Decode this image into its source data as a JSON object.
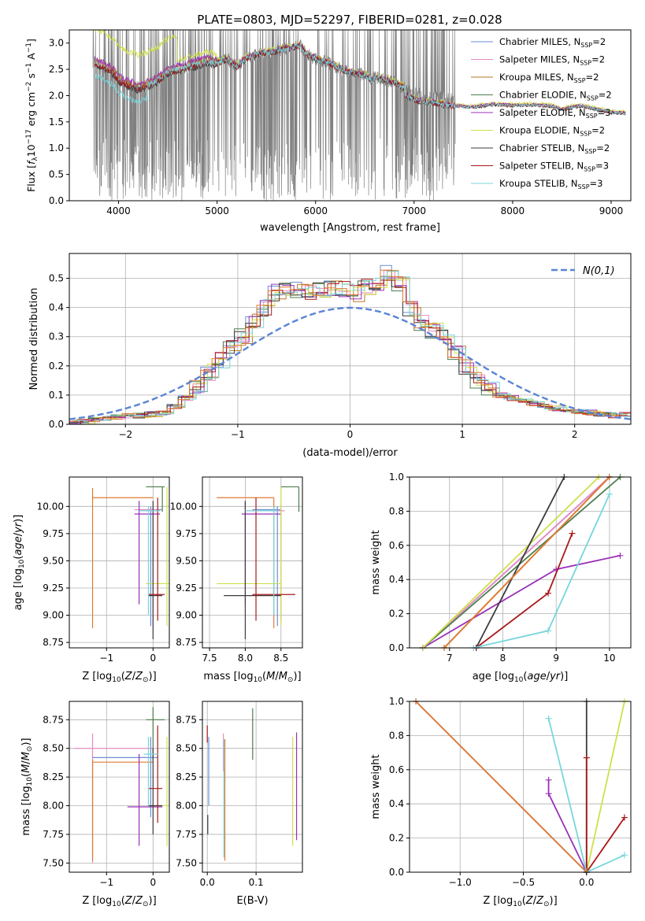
{
  "figure": {
    "title": "PLATE=0803, MJD=52297, FIBERID=0281, z=0.028"
  },
  "colors": {
    "Chabrier MILES": "#6a8fd8",
    "Salpeter MILES": "#e68ac4",
    "Kroupa MILES": "#b57a20",
    "Chabrier ELODIE": "#4d7d4d",
    "Salpeter ELODIE": "#9a30b8",
    "Kroupa ELODIE": "#cfe04a",
    "Chabrier STELIB": "#3c3c3c",
    "Salpeter STELIB": "#a81818",
    "Kroupa STELIB": "#78d6dc",
    "data": "#808080",
    "orange": "#e07a32",
    "normal": "#5b84d6"
  },
  "chart_data": [
    {
      "type": "line",
      "id": "spectrum",
      "xlabel": "wavelength [Angstrom, rest frame]",
      "ylabel": "Flux [f_λ 10^-17 erg cm^-2 s^-1 A^-1]",
      "xlim": [
        3500,
        9200
      ],
      "ylim": [
        0,
        3.25
      ],
      "xticks": [
        "4000",
        "5000",
        "6000",
        "7000",
        "8000",
        "9000"
      ],
      "yticks": [
        "0.0",
        "0.5",
        "1.0",
        "1.5",
        "2.0",
        "2.5",
        "3.0"
      ],
      "data_range": [
        3740,
        7420
      ],
      "legend_position": "upper-right",
      "legend": [
        {
          "model": "Chabrier MILES",
          "label": "Chabrier MILES, N",
          "sub": "SSP",
          "tail": "=2"
        },
        {
          "model": "Salpeter MILES",
          "label": "Salpeter MILES, N",
          "sub": "SSP",
          "tail": "=2"
        },
        {
          "model": "Kroupa MILES",
          "label": "Kroupa MILES, N",
          "sub": "SSP",
          "tail": "=2"
        },
        {
          "model": "Chabrier ELODIE",
          "label": "Chabrier ELODIE, N",
          "sub": "SSP",
          "tail": "=2"
        },
        {
          "model": "Salpeter ELODIE",
          "label": "Salpeter ELODIE, N",
          "sub": "SSP",
          "tail": "=3"
        },
        {
          "model": "Kroupa ELODIE",
          "label": "Kroupa ELODIE, N",
          "sub": "SSP",
          "tail": "=2"
        },
        {
          "model": "Chabrier STELIB",
          "label": "Chabrier STELIB, N",
          "sub": "SSP",
          "tail": "=2"
        },
        {
          "model": "Salpeter STELIB",
          "label": "Salpeter STELIB, N",
          "sub": "SSP",
          "tail": "=3"
        },
        {
          "model": "Kroupa STELIB",
          "label": "Kroupa STELIB, N",
          "sub": "SSP",
          "tail": "=3"
        }
      ],
      "continuum": [
        [
          3740,
          2.65
        ],
        [
          3800,
          2.6
        ],
        [
          3900,
          2.5
        ],
        [
          3950,
          2.45
        ],
        [
          4000,
          2.3
        ],
        [
          4100,
          2.2
        ],
        [
          4200,
          2.15
        ],
        [
          4300,
          2.2
        ],
        [
          4400,
          2.3
        ],
        [
          4500,
          2.45
        ],
        [
          4600,
          2.5
        ],
        [
          4700,
          2.55
        ],
        [
          4800,
          2.6
        ],
        [
          4900,
          2.65
        ],
        [
          5000,
          2.62
        ],
        [
          5100,
          2.7
        ],
        [
          5200,
          2.55
        ],
        [
          5300,
          2.72
        ],
        [
          5400,
          2.78
        ],
        [
          5500,
          2.82
        ],
        [
          5600,
          2.85
        ],
        [
          5700,
          2.9
        ],
        [
          5800,
          2.93
        ],
        [
          5850,
          2.96
        ],
        [
          5900,
          2.8
        ],
        [
          6000,
          2.7
        ],
        [
          6100,
          2.65
        ],
        [
          6200,
          2.55
        ],
        [
          6300,
          2.48
        ],
        [
          6400,
          2.42
        ],
        [
          6500,
          2.4
        ],
        [
          6560,
          2.3
        ],
        [
          6600,
          2.35
        ],
        [
          6700,
          2.3
        ],
        [
          6800,
          2.25
        ],
        [
          6900,
          2.15
        ],
        [
          7000,
          2.05
        ],
        [
          7100,
          2.0
        ],
        [
          7200,
          1.98
        ],
        [
          7300,
          1.95
        ],
        [
          7420,
          1.92
        ],
        [
          7600,
          1.9
        ],
        [
          7800,
          1.95
        ],
        [
          8000,
          1.93
        ],
        [
          8200,
          1.94
        ],
        [
          8400,
          1.92
        ],
        [
          8500,
          1.85
        ],
        [
          8600,
          1.9
        ],
        [
          8700,
          1.92
        ],
        [
          8800,
          1.88
        ],
        [
          9000,
          1.8
        ],
        [
          9200,
          1.78
        ]
      ]
    },
    {
      "type": "step",
      "id": "residual-histogram",
      "xlabel": "(data-model)/error",
      "ylabel": "Normed distribution",
      "xlim": [
        -2.5,
        2.5
      ],
      "ylim": [
        0,
        0.585
      ],
      "xticks": [
        "−2",
        "−1",
        "0",
        "1",
        "2"
      ],
      "yticks": [
        "0.0",
        "0.1",
        "0.2",
        "0.3",
        "0.4",
        "0.5"
      ],
      "bin_edges_start": -2.5,
      "bin_width": 0.1,
      "base_values": [
        0.005,
        0.01,
        0.015,
        0.02,
        0.025,
        0.028,
        0.03,
        0.035,
        0.04,
        0.06,
        0.09,
        0.13,
        0.18,
        0.22,
        0.26,
        0.3,
        0.35,
        0.4,
        0.45,
        0.47,
        0.46,
        0.45,
        0.46,
        0.47,
        0.46,
        0.45,
        0.47,
        0.48,
        0.52,
        0.48,
        0.4,
        0.35,
        0.32,
        0.3,
        0.24,
        0.2,
        0.15,
        0.12,
        0.1,
        0.09,
        0.08,
        0.07,
        0.06,
        0.055,
        0.05,
        0.045,
        0.04,
        0.035,
        0.03,
        0.035
      ],
      "normal_label": "N(0,1)",
      "legend_position": "upper-right"
    }
  ],
  "panels": {
    "age_vs_Z": {
      "xlabel_pre": "Z [log",
      "xlabel_sub": "10",
      "xlabel_post": "(Z/Z",
      "xlabel_end": ")]",
      "ylabel": "age  [log10(age/yr)]",
      "xticks": [
        "−1",
        "0"
      ],
      "yticks": [
        "8.75",
        "9.00",
        "9.25",
        "9.50",
        "9.75",
        "10.00"
      ],
      "xlim": [
        -1.8,
        0.35
      ],
      "ylim": [
        8.7,
        10.27
      ]
    },
    "age_vs_mass": {
      "xlabel": "mass [log10(M/M⊙)]",
      "xticks": [
        "7.5",
        "8.0",
        "8.5"
      ],
      "yticks": [
        "8.75",
        "9.00",
        "9.25",
        "9.50",
        "9.75",
        "10.00"
      ],
      "xlim": [
        7.4,
        8.8
      ],
      "ylim": [
        8.7,
        10.27
      ]
    },
    "mass_weight_vs_age": {
      "xlabel": "age  [log10(age/yr)]",
      "ylabel": "mass weight",
      "xticks": [
        "7",
        "8",
        "9",
        "10"
      ],
      "yticks": [
        "0.0",
        "0.2",
        "0.4",
        "0.6",
        "0.8",
        "1.0"
      ],
      "xlim": [
        6.25,
        10.4
      ],
      "ylim": [
        0,
        1
      ]
    },
    "mass_vs_Z": {
      "xlabel": "Z [log10(Z/Z⊙)]",
      "ylabel": "mass [log10(M/M⊙)]",
      "xticks": [
        "−1",
        "0"
      ],
      "yticks": [
        "7.50",
        "7.75",
        "8.00",
        "8.25",
        "8.50",
        "8.75"
      ],
      "xlim": [
        -1.8,
        0.35
      ],
      "ylim": [
        7.42,
        8.91
      ]
    },
    "mass_vs_ebv": {
      "xlabel": "E(B-V)",
      "xticks": [
        "0.0",
        "0.1"
      ],
      "yticks": [
        "7.50",
        "7.75",
        "8.00",
        "8.25",
        "8.50",
        "8.75"
      ],
      "xlim": [
        -0.01,
        0.195
      ],
      "ylim": [
        7.42,
        8.91
      ]
    },
    "mass_weight_vs_Z": {
      "xlabel": "Z [log10(Z/Z⊙)]",
      "ylabel": "mass weight",
      "xticks": [
        "−1.0",
        "−0.5",
        "0.0"
      ],
      "yticks": [
        "0.0",
        "0.2",
        "0.4",
        "0.6",
        "0.8",
        "1.0"
      ],
      "xlim": [
        -1.4,
        0.35
      ],
      "ylim": [
        0,
        1
      ]
    }
  },
  "weight_age_lines": [
    {
      "model": "Chabrier MILES",
      "points": [
        [
          6.5,
          0
        ],
        [
          10,
          1
        ]
      ]
    },
    {
      "model": "Salpeter MILES",
      "points": [
        [
          6.5,
          0
        ],
        [
          10,
          1
        ]
      ]
    },
    {
      "model": "Kroupa MILES",
      "points": [
        [
          6.9,
          0
        ],
        [
          10,
          1
        ]
      ]
    },
    {
      "model": "Chabrier ELODIE",
      "points": [
        [
          6.5,
          0
        ],
        [
          10.2,
          1
        ]
      ]
    },
    {
      "model": "Salpeter ELODIE",
      "points": [
        [
          6.5,
          0
        ],
        [
          9.0,
          0.46
        ],
        [
          10.2,
          0.54
        ]
      ]
    },
    {
      "model": "Kroupa ELODIE",
      "points": [
        [
          6.5,
          0
        ],
        [
          9.8,
          1
        ]
      ]
    },
    {
      "model": "Chabrier STELIB",
      "points": [
        [
          7.5,
          0
        ],
        [
          9.15,
          1
        ]
      ]
    },
    {
      "model": "Salpeter STELIB",
      "points": [
        [
          7.5,
          0
        ],
        [
          8.85,
          0.32
        ],
        [
          9.3,
          0.67
        ]
      ]
    },
    {
      "model": "Kroupa STELIB",
      "points": [
        [
          7.45,
          0
        ],
        [
          8.85,
          0.1
        ],
        [
          10.0,
          0.9
        ]
      ]
    },
    {
      "model": "orange",
      "points": [
        [
          6.9,
          0
        ],
        [
          10.0,
          1
        ]
      ]
    }
  ],
  "weight_Z_lines": [
    {
      "model": "Chabrier MILES",
      "points": [
        [
          -1.35,
          1
        ],
        [
          0,
          0
        ]
      ]
    },
    {
      "model": "Kroupa ELODIE",
      "points": [
        [
          0,
          0
        ],
        [
          0.3,
          1
        ]
      ]
    },
    {
      "model": "Chabrier STELIB",
      "points": [
        [
          0,
          0
        ],
        [
          0,
          1
        ]
      ]
    },
    {
      "model": "Salpeter STELIB",
      "points": [
        [
          0,
          0
        ],
        [
          0,
          0.67
        ]
      ]
    },
    {
      "model": "Salpeter STELIB",
      "points": [
        [
          0,
          0
        ],
        [
          0.3,
          0.32
        ]
      ]
    },
    {
      "model": "Salpeter ELODIE",
      "points": [
        [
          0,
          0
        ],
        [
          -0.3,
          0.46
        ],
        [
          -0.3,
          0.54
        ]
      ]
    },
    {
      "model": "Kroupa STELIB",
      "points": [
        [
          0,
          0
        ],
        [
          -0.3,
          0.9
        ]
      ]
    },
    {
      "model": "Kroupa STELIB",
      "points": [
        [
          0,
          0
        ],
        [
          0.3,
          0.1
        ]
      ]
    },
    {
      "model": "orange",
      "points": [
        [
          -1.35,
          1
        ],
        [
          0,
          0
        ]
      ]
    }
  ],
  "cross_age_Z": [
    {
      "model": "orange",
      "h": [
        -1.3,
        0.0,
        10.08
      ],
      "v": [
        -1.3,
        8.88,
        10.17
      ]
    },
    {
      "model": "Chabrier MILES",
      "h": [
        -0.3,
        0.2,
        9.97
      ],
      "v": [
        -0.05,
        8.9,
        10.0
      ]
    },
    {
      "model": "Salpeter MILES",
      "h": [
        -0.4,
        0.1,
        9.97
      ],
      "v": [
        0.0,
        8.9,
        10.0
      ]
    },
    {
      "model": "Chabrier ELODIE",
      "h": [
        -0.15,
        0.25,
        10.18
      ],
      "v": [
        0.2,
        9.95,
        10.18
      ]
    },
    {
      "model": "Salpeter ELODIE",
      "h": [
        -0.4,
        0.15,
        9.93
      ],
      "v": [
        -0.3,
        9.1,
        10.05
      ]
    },
    {
      "model": "Kroupa ELODIE",
      "h": [
        -0.15,
        0.35,
        9.29
      ],
      "v": [
        0.3,
        8.9,
        10.18
      ]
    },
    {
      "model": "Chabrier STELIB",
      "h": [
        -0.1,
        0.2,
        9.18
      ],
      "v": [
        0.0,
        8.78,
        10.05
      ]
    },
    {
      "model": "Salpeter STELIB",
      "h": [
        -0.1,
        0.25,
        9.19
      ],
      "v": [
        0.1,
        8.95,
        10.08
      ]
    },
    {
      "model": "Kroupa STELIB",
      "h": [
        -0.3,
        0.15,
        9.96
      ],
      "v": [
        -0.1,
        9.0,
        10.0
      ]
    }
  ],
  "cross_age_mass": [
    {
      "model": "orange",
      "h": [
        7.6,
        8.4,
        10.08
      ],
      "v": [
        8.4,
        8.88,
        10.08
      ]
    },
    {
      "model": "Chabrier MILES",
      "h": [
        8.1,
        8.5,
        9.97
      ],
      "v": [
        8.45,
        8.9,
        10.0
      ]
    },
    {
      "model": "Salpeter MILES",
      "h": [
        8.0,
        8.55,
        9.96
      ],
      "v": [
        8.5,
        8.95,
        10.0
      ]
    },
    {
      "model": "Chabrier ELODIE",
      "h": [
        8.5,
        8.75,
        10.18
      ],
      "v": [
        8.75,
        9.95,
        10.18
      ]
    },
    {
      "model": "Salpeter ELODIE",
      "h": [
        7.95,
        8.5,
        9.93
      ],
      "v": [
        8.0,
        9.1,
        10.05
      ]
    },
    {
      "model": "Kroupa ELODIE",
      "h": [
        7.6,
        8.5,
        9.29
      ],
      "v": [
        8.5,
        8.9,
        10.18
      ]
    },
    {
      "model": "Chabrier STELIB",
      "h": [
        7.7,
        8.5,
        9.18
      ],
      "v": [
        8.0,
        8.78,
        10.05
      ]
    },
    {
      "model": "Salpeter STELIB",
      "h": [
        8.1,
        8.7,
        9.19
      ],
      "v": [
        8.15,
        8.95,
        10.08
      ]
    },
    {
      "model": "Kroupa STELIB",
      "h": [
        8.0,
        8.45,
        9.96
      ],
      "v": [
        8.4,
        9.0,
        10.0
      ]
    }
  ],
  "cross_mass_Z": [
    {
      "model": "Salpeter MILES",
      "h": [
        -1.7,
        0.0,
        8.5
      ],
      "v": [
        -1.3,
        7.5,
        8.63
      ]
    },
    {
      "model": "Chabrier MILES",
      "h": [
        -1.3,
        0.1,
        8.42
      ],
      "v": [
        -0.05,
        7.9,
        8.6
      ]
    },
    {
      "model": "orange",
      "h": [
        -1.3,
        0.0,
        8.38
      ],
      "v": [
        -1.3,
        7.52,
        8.4
      ]
    },
    {
      "model": "Chabrier ELODIE",
      "h": [
        -0.15,
        0.25,
        8.75
      ],
      "v": [
        0.0,
        8.4,
        8.86
      ]
    },
    {
      "model": "Salpeter ELODIE",
      "h": [
        -0.55,
        0.2,
        7.99
      ],
      "v": [
        -0.3,
        7.65,
        8.45
      ]
    },
    {
      "model": "Kroupa ELODIE",
      "h": [
        -0.1,
        0.3,
        8.0
      ],
      "v": [
        0.3,
        7.65,
        8.6
      ]
    },
    {
      "model": "Chabrier STELIB",
      "h": [
        -0.1,
        0.2,
        8.0
      ],
      "v": [
        0.0,
        7.75,
        8.5
      ]
    },
    {
      "model": "Salpeter STELIB",
      "h": [
        -0.1,
        0.2,
        8.15
      ],
      "v": [
        0.1,
        7.85,
        8.7
      ]
    },
    {
      "model": "Kroupa STELIB",
      "h": [
        -0.2,
        0.1,
        8.45
      ],
      "v": [
        -0.1,
        8.0,
        8.6
      ]
    }
  ],
  "bars_mass_ebv": [
    {
      "model": "Salpeter STELIB",
      "x": 0.0,
      "y": [
        8.55,
        8.7
      ]
    },
    {
      "model": "Chabrier MILES",
      "x": 0.003,
      "y": [
        8.0,
        8.6
      ]
    },
    {
      "model": "Chabrier STELIB",
      "x": 0.001,
      "y": [
        7.75,
        7.92
      ]
    },
    {
      "model": "Salpeter MILES",
      "x": 0.033,
      "y": [
        8.3,
        8.63
      ]
    },
    {
      "model": "Kroupa STELIB",
      "x": 0.034,
      "y": [
        7.55,
        8.58
      ]
    },
    {
      "model": "orange",
      "x": 0.036,
      "y": [
        7.52,
        8.58
      ]
    },
    {
      "model": "Chabrier ELODIE",
      "x": 0.093,
      "y": [
        8.4,
        8.85
      ]
    },
    {
      "model": "Kroupa ELODIE",
      "x": 0.175,
      "y": [
        7.65,
        8.6
      ]
    },
    {
      "model": "Salpeter ELODIE",
      "x": 0.183,
      "y": [
        7.7,
        8.64
      ]
    }
  ]
}
